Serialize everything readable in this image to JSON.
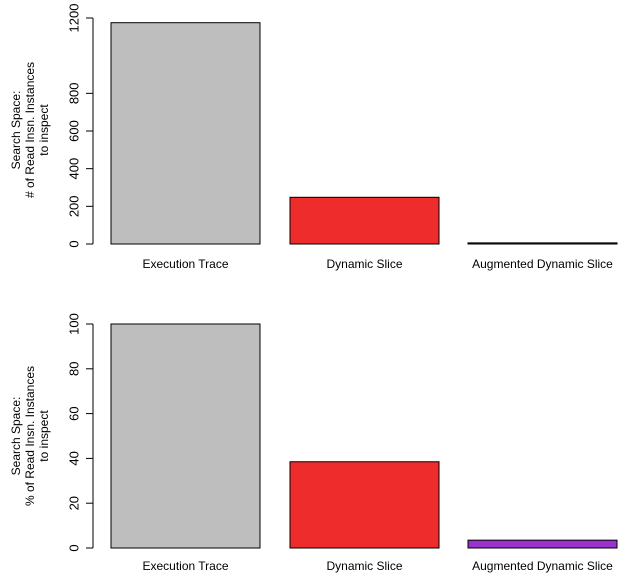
{
  "chart_data": [
    {
      "type": "bar",
      "categories": [
        "Execution Trace",
        "Dynamic Slice",
        "Augmented Dynamic Slice"
      ],
      "values": [
        1175,
        248,
        6
      ],
      "colors": [
        "#bebebe",
        "#ee2c2c",
        "#5d2a86"
      ],
      "ylabel_lines": [
        "Search Space:",
        "# of Read Insn. Instances",
        "to inspect"
      ],
      "ylim": [
        0,
        1200
      ],
      "yticks": [
        0,
        200,
        400,
        600,
        800,
        1200
      ],
      "ytick_labels": [
        "0",
        "200",
        "400",
        "600",
        "800",
        "1200"
      ],
      "grid": false,
      "legend": "none"
    },
    {
      "type": "bar",
      "categories": [
        "Execution Trace",
        "Dynamic Slice",
        "Augmented Dynamic Slice"
      ],
      "values": [
        100,
        38.5,
        3.5
      ],
      "colors": [
        "#bebebe",
        "#ee2c2c",
        "#9a32cd"
      ],
      "ylabel_lines": [
        "Search Space:",
        "% of Read Insn. Instances",
        "to inspect"
      ],
      "ylim": [
        0,
        100
      ],
      "yticks": [
        0,
        20,
        40,
        60,
        80,
        100
      ],
      "ytick_labels": [
        "0",
        "20",
        "40",
        "60",
        "80",
        "100"
      ],
      "grid": false,
      "legend": "none"
    }
  ]
}
